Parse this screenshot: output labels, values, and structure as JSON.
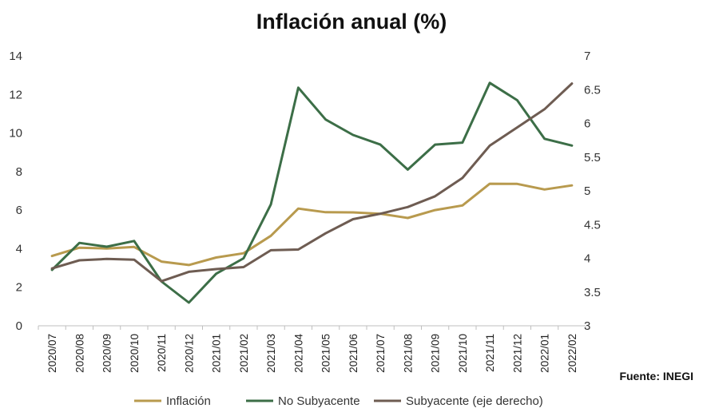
{
  "chart_data": {
    "type": "line",
    "title": "Inflación anual (%)",
    "source": "Fuente: INEGI",
    "categories": [
      "2020/07",
      "2020/08",
      "2020/09",
      "2020/10",
      "2020/11",
      "2020/12",
      "2021/01",
      "2021/02",
      "2021/03",
      "2021/04",
      "2021/05",
      "2021/06",
      "2021/07",
      "2021/08",
      "2021/09",
      "2021/10",
      "2021/11",
      "2021/12",
      "2022/01",
      "2022/02"
    ],
    "left_axis": {
      "ylim": [
        0,
        14
      ],
      "ticks": [
        "0",
        "2",
        "4",
        "6",
        "8",
        "10",
        "12",
        "14"
      ]
    },
    "right_axis": {
      "ylim": [
        3,
        7
      ],
      "ticks": [
        "3",
        "3.5",
        "4",
        "4.5",
        "5",
        "5.5",
        "6",
        "6.5",
        "7"
      ]
    },
    "series": [
      {
        "name": "Inflación",
        "axis": "left",
        "color": "#b89a4e",
        "values": [
          3.62,
          4.05,
          4.01,
          4.09,
          3.33,
          3.15,
          3.54,
          3.76,
          4.67,
          6.08,
          5.89,
          5.88,
          5.81,
          5.59,
          6.0,
          6.24,
          7.37,
          7.36,
          7.07,
          7.28
        ]
      },
      {
        "name": "No Subyacente",
        "axis": "left",
        "color": "#3c6e47",
        "values": [
          2.9,
          4.3,
          4.1,
          4.4,
          2.3,
          1.2,
          2.7,
          3.5,
          6.3,
          12.35,
          10.7,
          9.9,
          9.4,
          8.1,
          9.4,
          9.5,
          12.6,
          11.7,
          9.7,
          9.35
        ]
      },
      {
        "name": "Subyacente (eje derecho)",
        "axis": "right",
        "color": "#6e5c52",
        "values": [
          3.85,
          3.97,
          3.99,
          3.98,
          3.66,
          3.8,
          3.84,
          3.87,
          4.12,
          4.13,
          4.37,
          4.58,
          4.66,
          4.76,
          4.92,
          5.19,
          5.67,
          5.94,
          6.21,
          6.59
        ]
      }
    ],
    "legend_position": "bottom",
    "grid": false
  }
}
